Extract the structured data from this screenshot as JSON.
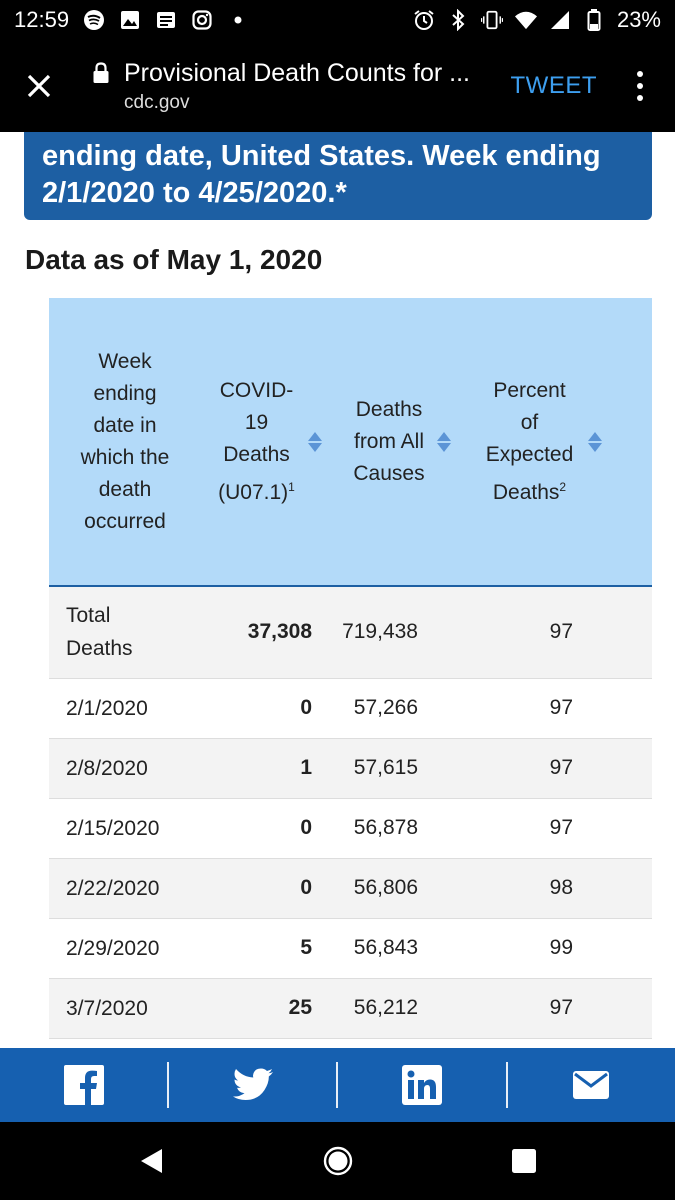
{
  "status_bar": {
    "time": "12:59",
    "battery": "23%",
    "icons_left": [
      "spotify-icon",
      "image-icon",
      "news-icon",
      "instagram-icon",
      "dot-icon"
    ],
    "icons_right": [
      "alarm-icon",
      "bluetooth-icon",
      "vibrate-icon",
      "wifi-icon",
      "cell-signal-icon",
      "battery-icon"
    ]
  },
  "toolbar": {
    "title": "Provisional Death Counts for ...",
    "domain": "cdc.gov",
    "tweet_label": "TWEET"
  },
  "header_card": {
    "line1": "ending date, United States. Week ending",
    "line2": "2/1/2020 to 4/25/2020.*"
  },
  "data_as_of": "Data as of May 1, 2020",
  "table": {
    "headers": {
      "week": "Week ending date in which the death occurred",
      "covid": "COVID-19 Deaths (U07.1)",
      "covid_sup": "1",
      "all": "Deaths from All Causes",
      "pct": "Percent of Expected Deaths",
      "pct_sup": "2"
    },
    "rows": [
      {
        "week": "Total Deaths",
        "covid": "37,308",
        "all": "719,438",
        "pct": "97"
      },
      {
        "week": "2/1/2020",
        "covid": "0",
        "all": "57,266",
        "pct": "97"
      },
      {
        "week": "2/8/2020",
        "covid": "1",
        "all": "57,615",
        "pct": "97"
      },
      {
        "week": "2/15/2020",
        "covid": "0",
        "all": "56,878",
        "pct": "97"
      },
      {
        "week": "2/22/2020",
        "covid": "0",
        "all": "56,806",
        "pct": "98"
      },
      {
        "week": "2/29/2020",
        "covid": "5",
        "all": "56,843",
        "pct": "99"
      },
      {
        "week": "3/7/2020",
        "covid": "25",
        "all": "56,212",
        "pct": "97"
      }
    ]
  },
  "share_bar": {
    "items": [
      "facebook-icon",
      "twitter-icon",
      "linkedin-icon",
      "email-icon"
    ]
  },
  "colors": {
    "accent": "#1d5fa3",
    "header_bg": "#b3daf9",
    "share_bg": "#1660b0",
    "tweet": "#3d9ff0"
  }
}
